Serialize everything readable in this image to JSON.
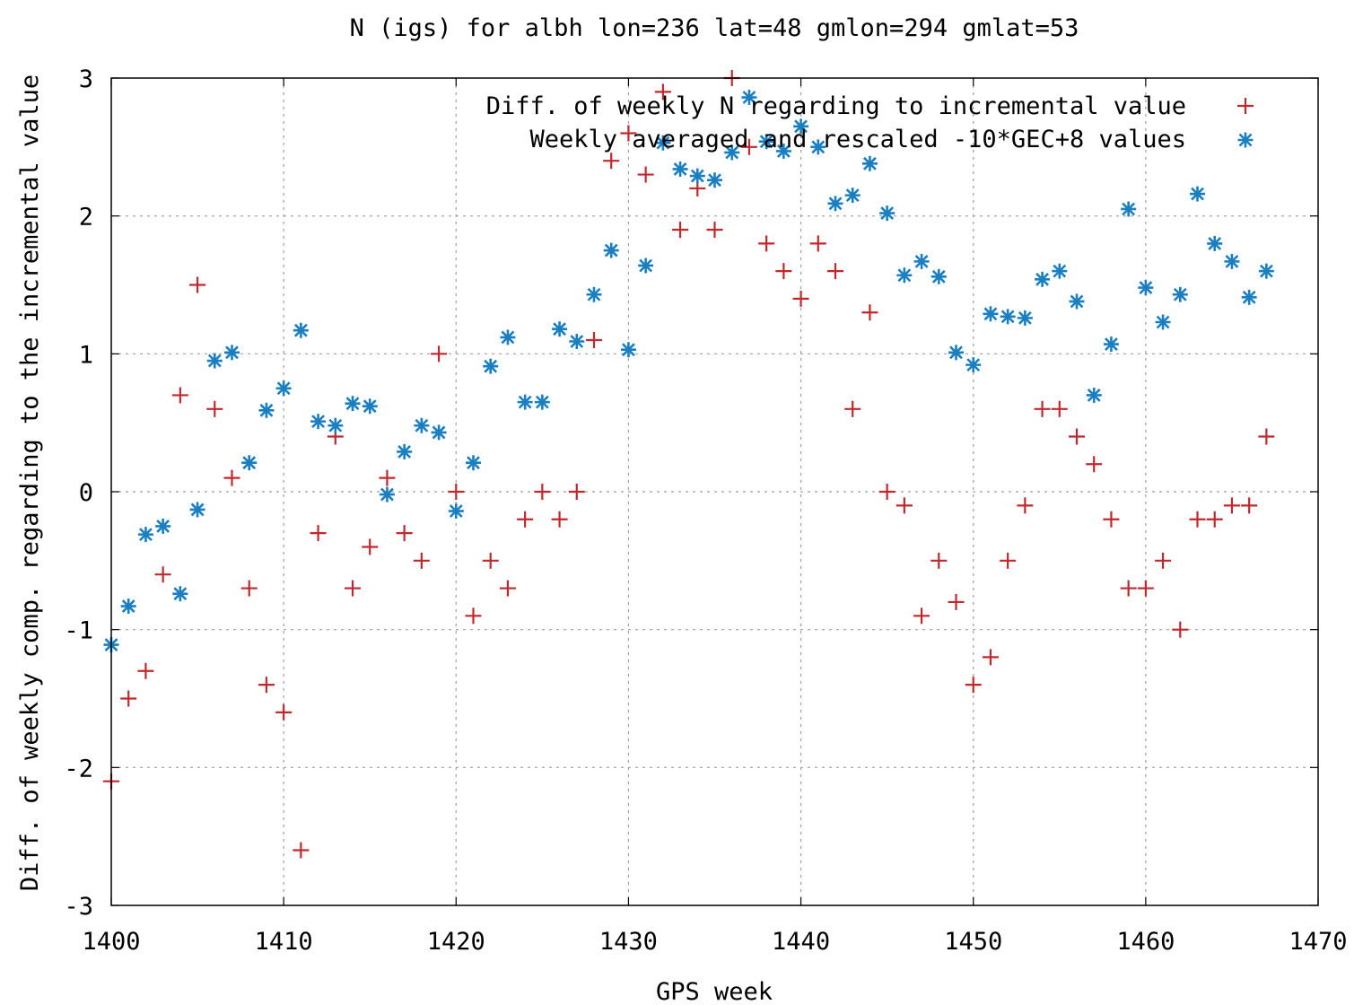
{
  "chart_data": {
    "type": "scatter",
    "title": "N (igs) for albh lon=236 lat=48 gmlon=294 gmlat=53",
    "xlabel": "GPS week",
    "ylabel": "Diff. of weekly comp. regarding to the incremental value",
    "xlim": [
      1400,
      1470
    ],
    "ylim": [
      -3,
      3
    ],
    "xticks": [
      "1400",
      "1410",
      "1420",
      "1430",
      "1440",
      "1450",
      "1460",
      "1470"
    ],
    "yticks": [
      "3",
      "2",
      "1",
      "0",
      "-1",
      "-2",
      "-3"
    ],
    "grid": true,
    "legend_position": "top-right",
    "series": [
      {
        "name": "Diff. of weekly N regarding to incremental value",
        "marker": "plus",
        "color": "#c0282d",
        "points": [
          [
            1400,
            -2.1
          ],
          [
            1401,
            -1.5
          ],
          [
            1402,
            -1.3
          ],
          [
            1403,
            -0.6
          ],
          [
            1404,
            0.7
          ],
          [
            1405,
            1.5
          ],
          [
            1406,
            0.6
          ],
          [
            1407,
            0.1
          ],
          [
            1408,
            -0.7
          ],
          [
            1409,
            -1.4
          ],
          [
            1410,
            -1.6
          ],
          [
            1411,
            -2.6
          ],
          [
            1412,
            -0.3
          ],
          [
            1413,
            0.4
          ],
          [
            1414,
            -0.7
          ],
          [
            1415,
            -0.4
          ],
          [
            1416,
            0.1
          ],
          [
            1417,
            -0.3
          ],
          [
            1418,
            -0.5
          ],
          [
            1419,
            1.0
          ],
          [
            1420,
            0.0
          ],
          [
            1421,
            -0.9
          ],
          [
            1422,
            -0.5
          ],
          [
            1423,
            -0.7
          ],
          [
            1424,
            -0.2
          ],
          [
            1425,
            0.0
          ],
          [
            1426,
            -0.2
          ],
          [
            1427,
            0.0
          ],
          [
            1428,
            1.1
          ],
          [
            1429,
            2.4
          ],
          [
            1430,
            2.6
          ],
          [
            1431,
            2.3
          ],
          [
            1432,
            2.9
          ],
          [
            1433,
            1.9
          ],
          [
            1434,
            2.2
          ],
          [
            1435,
            1.9
          ],
          [
            1436,
            3.0
          ],
          [
            1437,
            2.5
          ],
          [
            1438,
            1.8
          ],
          [
            1439,
            1.6
          ],
          [
            1440,
            1.4
          ],
          [
            1441,
            1.8
          ],
          [
            1442,
            1.6
          ],
          [
            1443,
            0.6
          ],
          [
            1444,
            1.3
          ],
          [
            1445,
            0.0
          ],
          [
            1446,
            -0.1
          ],
          [
            1447,
            -0.9
          ],
          [
            1448,
            -0.5
          ],
          [
            1449,
            -0.8
          ],
          [
            1450,
            -1.4
          ],
          [
            1451,
            -1.2
          ],
          [
            1452,
            -0.5
          ],
          [
            1453,
            -0.1
          ],
          [
            1454,
            0.6
          ],
          [
            1455,
            0.6
          ],
          [
            1456,
            0.4
          ],
          [
            1457,
            0.2
          ],
          [
            1458,
            -0.2
          ],
          [
            1459,
            -0.7
          ],
          [
            1460,
            -0.7
          ],
          [
            1461,
            -0.5
          ],
          [
            1462,
            -1.0
          ],
          [
            1463,
            -0.2
          ],
          [
            1464,
            -0.2
          ],
          [
            1465,
            -0.1
          ],
          [
            1466,
            -0.1
          ],
          [
            1467,
            0.4
          ]
        ]
      },
      {
        "name": "Weekly averaged and rescaled -10*GEC+8 values",
        "marker": "star",
        "color": "#1a7fc1",
        "points": [
          [
            1400,
            -1.11
          ],
          [
            1401,
            -0.83
          ],
          [
            1402,
            -0.31
          ],
          [
            1403,
            -0.25
          ],
          [
            1404,
            -0.74
          ],
          [
            1405,
            -0.13
          ],
          [
            1406,
            0.95
          ],
          [
            1407,
            1.01
          ],
          [
            1408,
            0.21
          ],
          [
            1409,
            0.59
          ],
          [
            1410,
            0.75
          ],
          [
            1411,
            1.17
          ],
          [
            1412,
            0.51
          ],
          [
            1413,
            0.48
          ],
          [
            1414,
            0.64
          ],
          [
            1415,
            0.62
          ],
          [
            1416,
            -0.02
          ],
          [
            1417,
            0.29
          ],
          [
            1418,
            0.48
          ],
          [
            1419,
            0.43
          ],
          [
            1420,
            -0.14
          ],
          [
            1421,
            0.21
          ],
          [
            1422,
            0.91
          ],
          [
            1423,
            1.12
          ],
          [
            1424,
            0.65
          ],
          [
            1425,
            0.65
          ],
          [
            1426,
            1.18
          ],
          [
            1427,
            1.09
          ],
          [
            1428,
            1.43
          ],
          [
            1429,
            1.75
          ],
          [
            1430,
            1.03
          ],
          [
            1431,
            1.64
          ],
          [
            1432,
            2.53
          ],
          [
            1433,
            2.34
          ],
          [
            1434,
            2.29
          ],
          [
            1435,
            2.26
          ],
          [
            1436,
            2.46
          ],
          [
            1437,
            2.86
          ],
          [
            1438,
            2.54
          ],
          [
            1439,
            2.47
          ],
          [
            1440,
            2.65
          ],
          [
            1441,
            2.5
          ],
          [
            1442,
            2.09
          ],
          [
            1443,
            2.15
          ],
          [
            1444,
            2.38
          ],
          [
            1445,
            2.02
          ],
          [
            1446,
            1.57
          ],
          [
            1447,
            1.67
          ],
          [
            1448,
            1.56
          ],
          [
            1449,
            1.01
          ],
          [
            1450,
            0.92
          ],
          [
            1451,
            1.29
          ],
          [
            1452,
            1.27
          ],
          [
            1453,
            1.26
          ],
          [
            1454,
            1.54
          ],
          [
            1455,
            1.6
          ],
          [
            1456,
            1.38
          ],
          [
            1457,
            0.7
          ],
          [
            1458,
            1.07
          ],
          [
            1459,
            2.05
          ],
          [
            1460,
            1.48
          ],
          [
            1461,
            1.23
          ],
          [
            1462,
            1.43
          ],
          [
            1463,
            2.16
          ],
          [
            1464,
            1.8
          ],
          [
            1465,
            1.67
          ],
          [
            1466,
            1.41
          ],
          [
            1467,
            1.6
          ]
        ]
      }
    ]
  }
}
